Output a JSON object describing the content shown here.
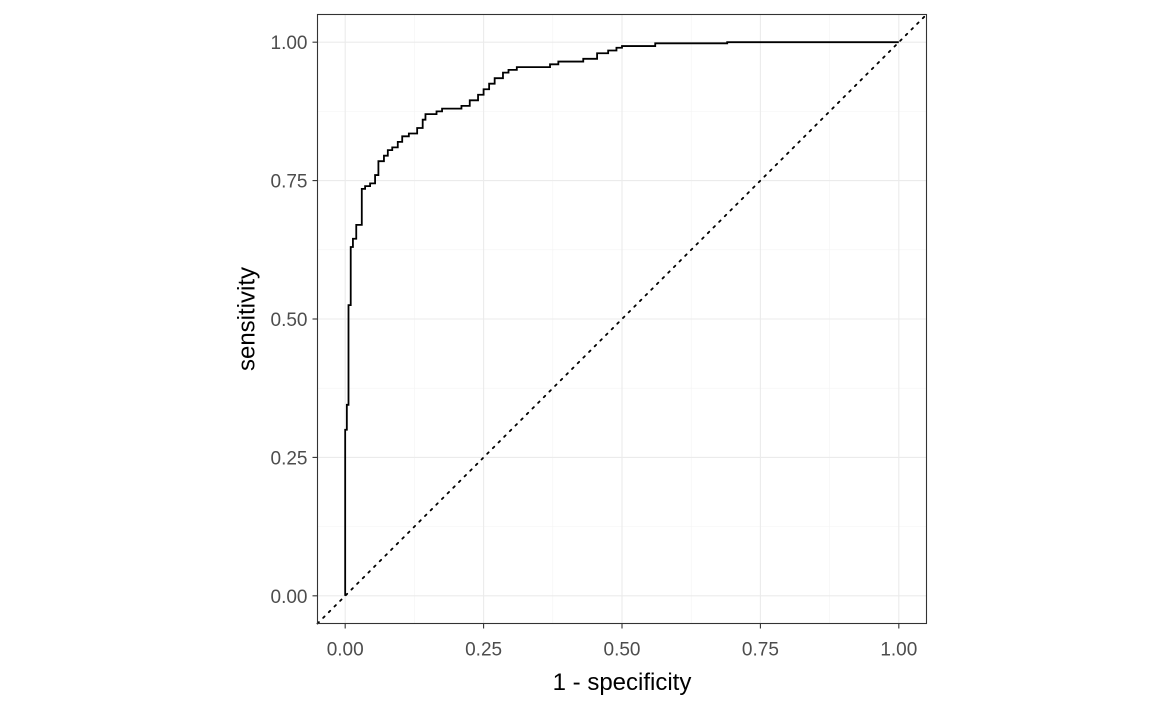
{
  "chart_data": {
    "type": "line",
    "title": "",
    "xlabel": "1 - specificity",
    "ylabel": "sensitivity",
    "xlim": [
      -0.05,
      1.05
    ],
    "ylim": [
      -0.05,
      1.05
    ],
    "x_ticks": [
      "0.00",
      "0.25",
      "0.50",
      "0.75",
      "1.00"
    ],
    "y_ticks": [
      "0.00",
      "0.25",
      "0.50",
      "0.75",
      "1.00"
    ],
    "grid": true,
    "legend": "none",
    "series": [
      {
        "style": "solid",
        "color": "#000000",
        "points": [
          [
            0.0,
            0.0
          ],
          [
            0.0,
            0.3
          ],
          [
            0.003,
            0.3
          ],
          [
            0.003,
            0.345
          ],
          [
            0.006,
            0.345
          ],
          [
            0.006,
            0.525
          ],
          [
            0.01,
            0.525
          ],
          [
            0.01,
            0.63
          ],
          [
            0.014,
            0.63
          ],
          [
            0.014,
            0.645
          ],
          [
            0.02,
            0.645
          ],
          [
            0.02,
            0.67
          ],
          [
            0.03,
            0.67
          ],
          [
            0.03,
            0.735
          ],
          [
            0.036,
            0.735
          ],
          [
            0.036,
            0.74
          ],
          [
            0.045,
            0.74
          ],
          [
            0.045,
            0.745
          ],
          [
            0.054,
            0.745
          ],
          [
            0.054,
            0.76
          ],
          [
            0.06,
            0.76
          ],
          [
            0.06,
            0.785
          ],
          [
            0.07,
            0.785
          ],
          [
            0.07,
            0.795
          ],
          [
            0.077,
            0.795
          ],
          [
            0.077,
            0.805
          ],
          [
            0.085,
            0.805
          ],
          [
            0.085,
            0.81
          ],
          [
            0.095,
            0.81
          ],
          [
            0.095,
            0.82
          ],
          [
            0.103,
            0.82
          ],
          [
            0.103,
            0.83
          ],
          [
            0.115,
            0.83
          ],
          [
            0.115,
            0.835
          ],
          [
            0.13,
            0.835
          ],
          [
            0.13,
            0.845
          ],
          [
            0.14,
            0.845
          ],
          [
            0.14,
            0.86
          ],
          [
            0.145,
            0.86
          ],
          [
            0.145,
            0.87
          ],
          [
            0.165,
            0.87
          ],
          [
            0.165,
            0.875
          ],
          [
            0.175,
            0.875
          ],
          [
            0.175,
            0.88
          ],
          [
            0.21,
            0.88
          ],
          [
            0.21,
            0.885
          ],
          [
            0.225,
            0.885
          ],
          [
            0.225,
            0.895
          ],
          [
            0.24,
            0.895
          ],
          [
            0.24,
            0.905
          ],
          [
            0.25,
            0.905
          ],
          [
            0.25,
            0.915
          ],
          [
            0.26,
            0.915
          ],
          [
            0.26,
            0.925
          ],
          [
            0.27,
            0.925
          ],
          [
            0.27,
            0.935
          ],
          [
            0.285,
            0.935
          ],
          [
            0.285,
            0.945
          ],
          [
            0.295,
            0.945
          ],
          [
            0.295,
            0.95
          ],
          [
            0.31,
            0.95
          ],
          [
            0.31,
            0.955
          ],
          [
            0.37,
            0.955
          ],
          [
            0.37,
            0.96
          ],
          [
            0.385,
            0.96
          ],
          [
            0.385,
            0.965
          ],
          [
            0.43,
            0.965
          ],
          [
            0.43,
            0.97
          ],
          [
            0.455,
            0.97
          ],
          [
            0.455,
            0.98
          ],
          [
            0.475,
            0.98
          ],
          [
            0.475,
            0.985
          ],
          [
            0.49,
            0.985
          ],
          [
            0.49,
            0.99
          ],
          [
            0.5,
            0.99
          ],
          [
            0.5,
            0.993
          ],
          [
            0.56,
            0.993
          ],
          [
            0.56,
            0.998
          ],
          [
            0.69,
            0.998
          ],
          [
            0.69,
            1.0
          ],
          [
            1.0,
            1.0
          ]
        ]
      },
      {
        "style": "dotted",
        "color": "#000000",
        "points": [
          [
            -0.05,
            -0.05
          ],
          [
            1.05,
            1.05
          ]
        ]
      }
    ]
  }
}
